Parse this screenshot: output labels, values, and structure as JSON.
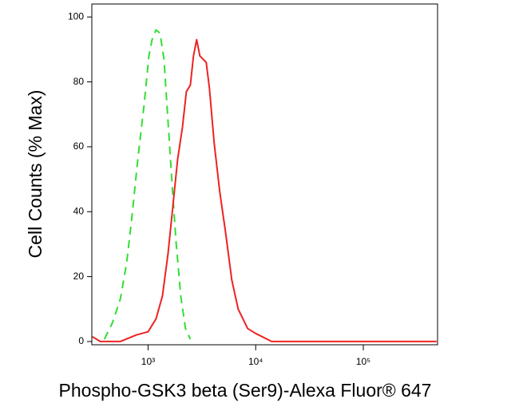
{
  "chart_data": {
    "type": "line",
    "x_label": "Phospho-GSK3 beta (Ser9)-Alexa Fluor® 647",
    "y_label": "Cell Counts (% Max)",
    "x_scale": "log",
    "xlim": [
      300,
      490000
    ],
    "ylim": [
      -1,
      104
    ],
    "xticks": [
      {
        "value": 1000,
        "label": "10³"
      },
      {
        "value": 10000,
        "label": "10⁴"
      },
      {
        "value": 100000,
        "label": "10⁵"
      }
    ],
    "yticks": [
      0,
      20,
      40,
      60,
      80,
      100
    ],
    "series": [
      {
        "color": "#33dd33",
        "dash": true,
        "x": [
          392,
          464,
          551,
          631,
          711,
          801,
          918,
          1017,
          1089,
          1186,
          1291,
          1406,
          1531,
          1667,
          1815,
          2012,
          2228,
          2472
        ],
        "values": [
          0.7,
          5.6,
          13,
          24,
          39,
          56,
          73,
          88,
          93,
          96,
          95,
          87,
          68,
          49,
          31,
          14,
          4,
          0.7
        ]
      },
      {
        "color": "#ee2222",
        "dash": false,
        "x": [
          303,
          359,
          551,
          774,
          1000,
          1186,
          1359,
          1531,
          1667,
          1880,
          2085,
          2268,
          2472,
          2643,
          2830,
          3027,
          3243,
          3474,
          3718,
          4118,
          4642,
          5232,
          5995,
          6874,
          8430,
          10000,
          14060,
          27800,
          480000
        ],
        "values": [
          1.5,
          0,
          0,
          2,
          3,
          7,
          14,
          27,
          39,
          56,
          66,
          77,
          79,
          88,
          93,
          88,
          87,
          86,
          78,
          61,
          46,
          34,
          19,
          10,
          4,
          2.5,
          0,
          0,
          0
        ]
      }
    ]
  }
}
